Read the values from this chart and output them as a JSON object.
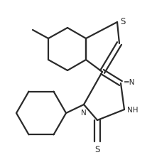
{
  "bg_color": "#ffffff",
  "line_color": "#2a2a2a",
  "line_width": 1.6,
  "font_size": 7.5,
  "fig_width": 2.14,
  "fig_height": 2.26,
  "dpi": 100,
  "xlim": [
    0,
    214
  ],
  "ylim": [
    0,
    226
  ]
}
